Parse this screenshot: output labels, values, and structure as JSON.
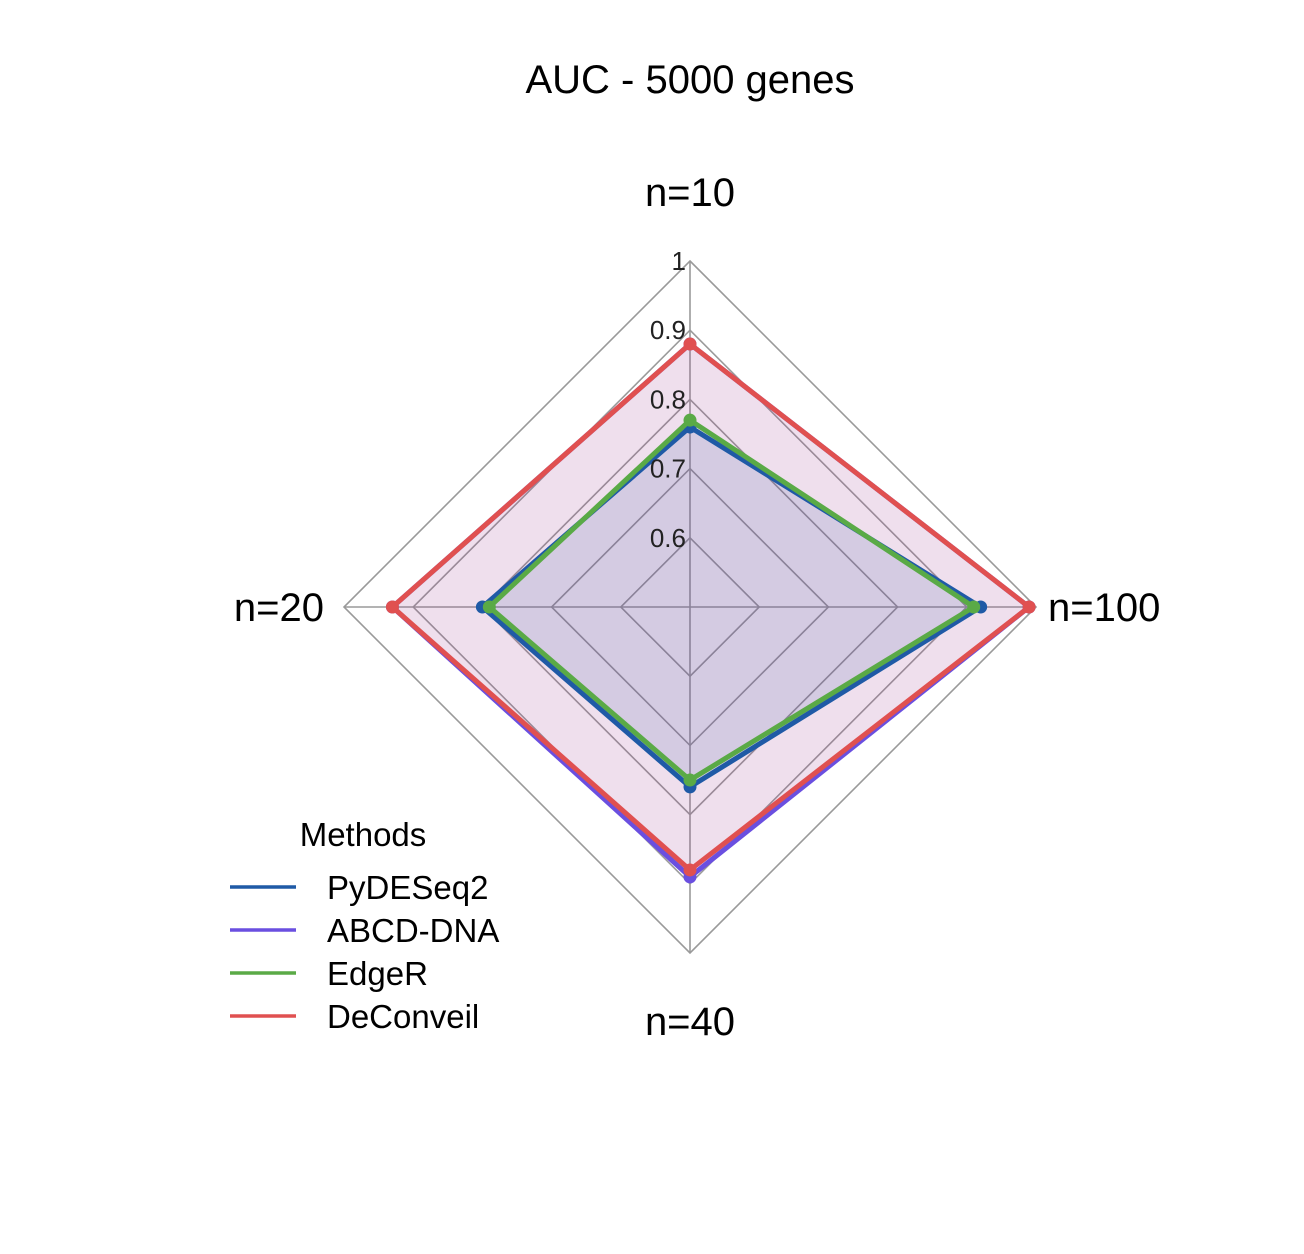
{
  "chart_data": {
    "type": "radar",
    "title": "AUC - 5000 genes",
    "axes": [
      "n=10",
      "n=100",
      "n=40",
      "n=20"
    ],
    "rlim": [
      0.5,
      1.0
    ],
    "ticks": [
      0.6,
      0.7,
      0.8,
      0.9,
      1.0
    ],
    "tick_labels": [
      "0.6",
      "0.7",
      "0.8",
      "0.9",
      "1"
    ],
    "grid": true,
    "legend": {
      "title": "Methods",
      "position": "bottom-left"
    },
    "series": [
      {
        "name": "PyDESeq2",
        "color": "#1f5aa6",
        "values": [
          0.76,
          0.92,
          0.76,
          0.8
        ]
      },
      {
        "name": "ABCD-DNA",
        "color": "#6a4fe0",
        "values": [
          0.88,
          0.99,
          0.89,
          0.93
        ]
      },
      {
        "name": "EdgeR",
        "color": "#5aaa46",
        "values": [
          0.77,
          0.91,
          0.75,
          0.79
        ]
      },
      {
        "name": "DeConveil",
        "color": "#e05050",
        "values": [
          0.88,
          0.99,
          0.88,
          0.93
        ]
      }
    ],
    "fills": [
      {
        "color": "#1f5aa6",
        "opacity": 0.14
      },
      {
        "color": "#9b3a8f",
        "opacity": 0.16
      }
    ]
  }
}
